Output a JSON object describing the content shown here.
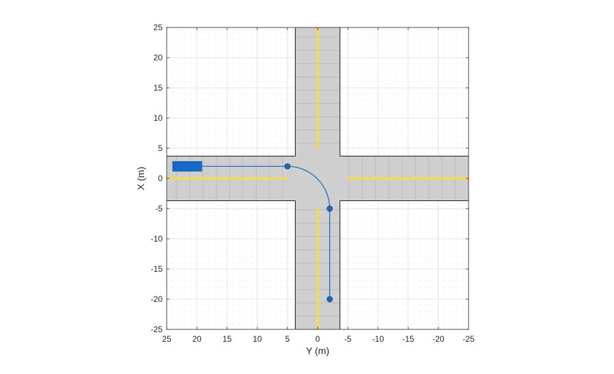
{
  "chart_data": {
    "type": "scatter",
    "title": "",
    "xlabel": "Y (m)",
    "ylabel": "X (m)",
    "xlim": [
      25,
      -25
    ],
    "ylim": [
      -25,
      25
    ],
    "x_reversed": true,
    "grid": true,
    "minor_grid": true,
    "xticks": [
      25,
      20,
      15,
      10,
      5,
      0,
      -5,
      -10,
      -15,
      -20,
      -25
    ],
    "yticks": [
      25,
      20,
      15,
      10,
      5,
      0,
      -5,
      -10,
      -15,
      -20,
      -25
    ],
    "road": {
      "half_width": 3.7,
      "center_marking_color": "#f2d862",
      "surface_color": "#cfcfcf",
      "lane_line_color": "#b0b0b0"
    },
    "vehicle": {
      "x_min": 19.2,
      "x_max": 24,
      "y_min": 1.2,
      "y_max": 2.8,
      "color": "#1769c9"
    },
    "waypoints": [
      {
        "y": 5,
        "x": 2
      },
      {
        "y": -2,
        "x": -5
      },
      {
        "y": -2,
        "x": -20
      }
    ],
    "path": {
      "start": {
        "y": 19.2,
        "x": 2
      },
      "turn_center": {
        "y": 5,
        "x": -5
      },
      "turn_radius": 7,
      "end": {
        "y": -2,
        "x": -20
      }
    },
    "colors": {
      "path": "#1a6fc4",
      "marker": "#1f67b8",
      "axis": "#262626",
      "grid": "#dcdcdc"
    }
  }
}
